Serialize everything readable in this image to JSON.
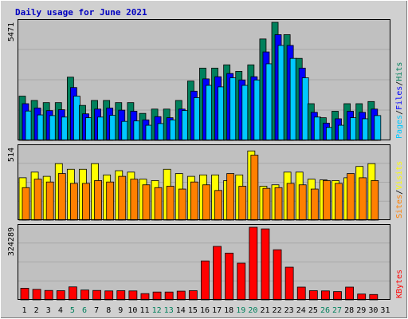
{
  "chart_data": [
    {
      "type": "bar",
      "title": "Daily usage for June 2021",
      "ymax_label": "5471",
      "ylim": [
        0,
        5471
      ],
      "categories": [
        "1",
        "2",
        "3",
        "4",
        "5",
        "6",
        "7",
        "8",
        "9",
        "10",
        "11",
        "12",
        "13",
        "14",
        "15",
        "16",
        "17",
        "18",
        "19",
        "20",
        "21",
        "22",
        "23",
        "24",
        "25",
        "26",
        "27",
        "28",
        "29",
        "30",
        "31"
      ],
      "weekend_days": [
        "5",
        "6",
        "12",
        "13",
        "19",
        "20",
        "26",
        "27"
      ],
      "side_labels": [
        "Pages",
        "/",
        "Files",
        "/",
        "Hits"
      ],
      "series": [
        {
          "name": "Hits",
          "color": "#00805c",
          "values": [
            2050,
            1850,
            1750,
            1750,
            2930,
            1620,
            1850,
            1850,
            1750,
            1750,
            1250,
            1450,
            1450,
            1850,
            2750,
            3350,
            3350,
            3500,
            3200,
            3500,
            4700,
            5471,
            4900,
            3800,
            1700,
            1050,
            1350,
            1700,
            1700,
            1800,
            0
          ]
        },
        {
          "name": "Files",
          "color": "#0000ff",
          "values": [
            1700,
            1500,
            1380,
            1420,
            2450,
            1230,
            1450,
            1500,
            1400,
            1350,
            950,
            1100,
            1050,
            1450,
            2280,
            2850,
            2950,
            3100,
            2800,
            2950,
            4100,
            4900,
            4400,
            3350,
            1300,
            800,
            1000,
            1350,
            1300,
            1450,
            0
          ]
        },
        {
          "name": "Pages",
          "color": "#00c8ff",
          "values": [
            1360,
            1180,
            1150,
            1080,
            2050,
            1050,
            1080,
            1160,
            880,
            900,
            700,
            780,
            950,
            1380,
            1980,
            2550,
            2480,
            2900,
            2550,
            2800,
            3550,
            4400,
            3800,
            2900,
            1080,
            600,
            700,
            1050,
            1000,
            1150,
            0
          ]
        }
      ]
    },
    {
      "type": "bar",
      "ymax_label": "514",
      "ylim": [
        0,
        514
      ],
      "categories": [
        "1",
        "2",
        "3",
        "4",
        "5",
        "6",
        "7",
        "8",
        "9",
        "10",
        "11",
        "12",
        "13",
        "14",
        "15",
        "16",
        "17",
        "18",
        "19",
        "20",
        "21",
        "22",
        "23",
        "24",
        "25",
        "26",
        "27",
        "28",
        "29",
        "30",
        "31"
      ],
      "side_labels": [
        "Sites",
        "/",
        "Visits"
      ],
      "series": [
        {
          "name": "Visits",
          "color": "#ffff00",
          "values": [
            300,
            340,
            310,
            400,
            360,
            360,
            400,
            320,
            350,
            340,
            290,
            280,
            360,
            330,
            310,
            320,
            320,
            280,
            320,
            490,
            240,
            250,
            340,
            340,
            290,
            285,
            280,
            300,
            380,
            400,
            0
          ]
        },
        {
          "name": "Sites",
          "color": "#ff8000",
          "values": [
            230,
            290,
            270,
            330,
            260,
            260,
            280,
            270,
            310,
            290,
            250,
            230,
            240,
            220,
            270,
            250,
            210,
            330,
            240,
            460,
            225,
            230,
            260,
            250,
            220,
            280,
            260,
            330,
            300,
            280,
            0
          ]
        }
      ]
    },
    {
      "type": "bar",
      "ymax_label": "324289",
      "ylim": [
        0,
        324289
      ],
      "categories": [
        "1",
        "2",
        "3",
        "4",
        "5",
        "6",
        "7",
        "8",
        "9",
        "10",
        "11",
        "12",
        "13",
        "14",
        "15",
        "16",
        "17",
        "18",
        "19",
        "20",
        "21",
        "22",
        "23",
        "24",
        "25",
        "26",
        "27",
        "28",
        "29",
        "30",
        "31"
      ],
      "side_labels": [
        "KBytes"
      ],
      "series": [
        {
          "name": "KBytes",
          "color": "#ff0000",
          "values": [
            52000,
            47000,
            42000,
            41000,
            58000,
            44000,
            42000,
            40000,
            41000,
            40000,
            28000,
            35000,
            35000,
            39000,
            41000,
            174000,
            239000,
            209000,
            164000,
            324289,
            317000,
            224000,
            146000,
            57000,
            41000,
            40000,
            37000,
            57000,
            26000,
            24000,
            0
          ]
        }
      ]
    }
  ]
}
